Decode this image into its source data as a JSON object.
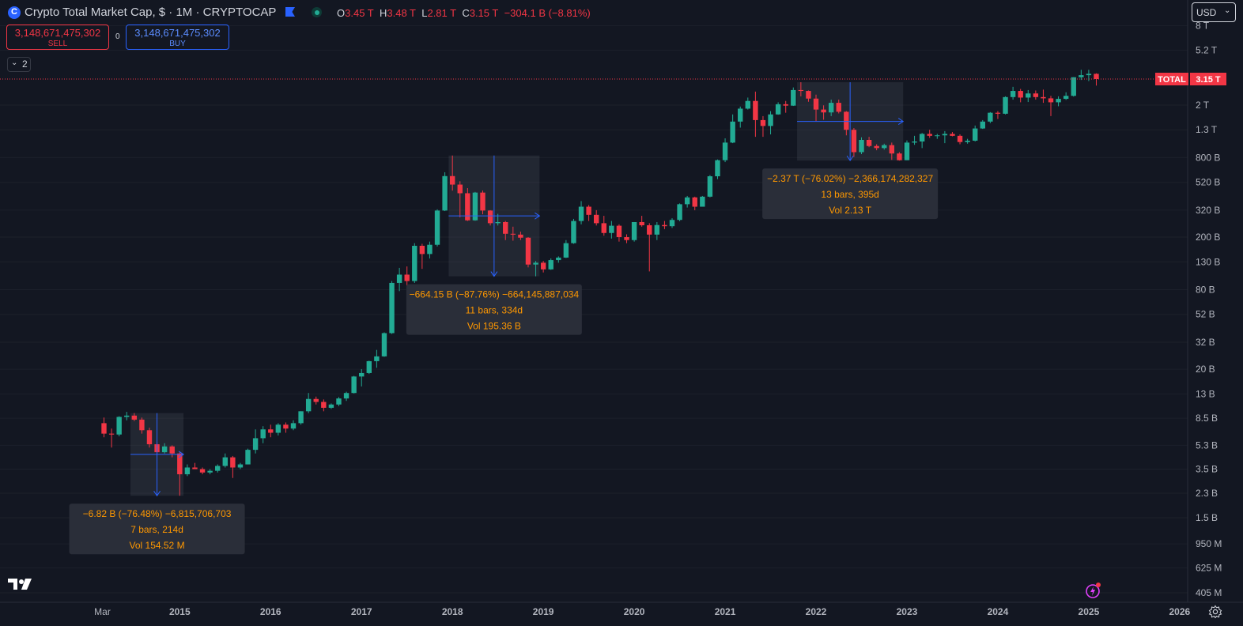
{
  "header": {
    "title": "Crypto Total Market Cap, $ · 1M · CRYPTOCAP",
    "ohlc": [
      {
        "k": "O",
        "v": "3.45 T"
      },
      {
        "k": "H",
        "v": "3.48 T"
      },
      {
        "k": "L",
        "v": "2.81 T"
      },
      {
        "k": "C",
        "v": "3.15 T"
      }
    ],
    "change": "−304.1 B (−8.81%)"
  },
  "trade": {
    "sell_value": "3,148,671,475,302",
    "sell_label": "SELL",
    "spread": "0",
    "buy_value": "3,148,671,475,302",
    "buy_label": "BUY"
  },
  "indicators_count": "2",
  "currency": "USD",
  "price_tag": {
    "label": "TOTAL",
    "value": "3.15 T"
  },
  "colors": {
    "up": "#22ab94",
    "down": "#f23645",
    "accent": "#2962ff",
    "background": "#131722",
    "measure_text": "#ff9800"
  },
  "chart_data": {
    "type": "candlestick",
    "title": "Crypto Total Market Cap",
    "interval": "1M",
    "scale": "log",
    "y_ticks": [
      "8 T",
      "5.2 T",
      "2 T",
      "1.3 T",
      "800 B",
      "520 B",
      "320 B",
      "200 B",
      "130 B",
      "80 B",
      "52 B",
      "32 B",
      "20 B",
      "13 B",
      "8.5 B",
      "5.3 B",
      "3.5 B",
      "2.3 B",
      "1.5 B",
      "950 M",
      "625 M",
      "405 M"
    ],
    "x_ticks": [
      "Mar",
      "2015",
      "2016",
      "2017",
      "2018",
      "2019",
      "2020",
      "2021",
      "2022",
      "2023",
      "2024",
      "2025",
      "2026"
    ],
    "candles": [
      [
        "2014-03",
        7.8,
        8.6,
        6.1,
        6.5
      ],
      [
        "2014-04",
        6.5,
        7.1,
        5.1,
        6.4
      ],
      [
        "2014-05",
        6.4,
        8.8,
        6.2,
        8.7
      ],
      [
        "2014-06",
        8.7,
        9.5,
        8.2,
        8.9
      ],
      [
        "2014-07",
        8.9,
        9.3,
        8.1,
        8.3
      ],
      [
        "2014-08",
        8.3,
        8.6,
        6.5,
        6.9
      ],
      [
        "2014-09",
        6.9,
        7.2,
        5.1,
        5.4
      ],
      [
        "2014-10",
        5.4,
        5.6,
        4.5,
        4.7
      ],
      [
        "2014-11",
        4.7,
        5.5,
        4.6,
        5.2
      ],
      [
        "2014-12",
        5.2,
        5.3,
        4.3,
        4.6
      ],
      [
        "2015-01",
        4.6,
        4.7,
        2.2,
        3.2
      ],
      [
        "2015-02",
        3.2,
        3.8,
        3.1,
        3.6
      ],
      [
        "2015-03",
        3.6,
        3.9,
        3.5,
        3.5
      ],
      [
        "2015-04",
        3.5,
        3.6,
        3.2,
        3.3
      ],
      [
        "2015-05",
        3.3,
        3.5,
        3.2,
        3.4
      ],
      [
        "2015-06",
        3.4,
        3.8,
        3.3,
        3.7
      ],
      [
        "2015-07",
        3.7,
        4.6,
        3.6,
        4.3
      ],
      [
        "2015-08",
        4.3,
        4.4,
        3.0,
        3.6
      ],
      [
        "2015-09",
        3.6,
        3.9,
        3.5,
        3.8
      ],
      [
        "2015-10",
        3.8,
        5.0,
        3.8,
        4.9
      ],
      [
        "2015-11",
        4.9,
        7.0,
        4.6,
        6.0
      ],
      [
        "2015-12",
        6.0,
        7.4,
        5.5,
        7.0
      ],
      [
        "2016-01",
        7.0,
        7.6,
        6.1,
        6.6
      ],
      [
        "2016-02",
        6.6,
        7.8,
        6.3,
        7.6
      ],
      [
        "2016-03",
        7.6,
        7.9,
        6.6,
        7.1
      ],
      [
        "2016-04",
        7.1,
        8.2,
        6.9,
        7.8
      ],
      [
        "2016-05",
        7.8,
        9.6,
        7.6,
        9.6
      ],
      [
        "2016-06",
        9.6,
        13.2,
        9.3,
        11.9
      ],
      [
        "2016-07",
        11.9,
        12.4,
        10.8,
        11.3
      ],
      [
        "2016-08",
        11.3,
        11.8,
        9.6,
        10.2
      ],
      [
        "2016-09",
        10.2,
        11.0,
        10.0,
        10.8
      ],
      [
        "2016-10",
        10.8,
        12.3,
        10.5,
        12.0
      ],
      [
        "2016-11",
        12.0,
        13.5,
        11.5,
        13.2
      ],
      [
        "2016-12",
        13.2,
        17.8,
        13.1,
        17.6
      ],
      [
        "2017-01",
        17.6,
        20.0,
        14.8,
        18.7
      ],
      [
        "2017-02",
        18.7,
        23.2,
        18.4,
        23.0
      ],
      [
        "2017-03",
        23.0,
        28.0,
        20.5,
        25.0
      ],
      [
        "2017-04",
        25.0,
        38.0,
        24.8,
        37.5
      ],
      [
        "2017-05",
        37.5,
        93,
        37.0,
        90
      ],
      [
        "2017-06",
        90,
        117,
        78,
        104
      ],
      [
        "2017-07",
        104,
        120,
        65,
        93
      ],
      [
        "2017-08",
        93,
        180,
        90,
        172
      ],
      [
        "2017-09",
        172,
        178,
        115,
        149
      ],
      [
        "2017-10",
        149,
        185,
        138,
        175
      ],
      [
        "2017-11",
        175,
        325,
        170,
        318
      ],
      [
        "2017-12",
        318,
        620,
        315,
        580
      ],
      [
        "2018-01",
        580,
        830,
        450,
        500
      ],
      [
        "2018-02",
        500,
        530,
        282,
        430
      ],
      [
        "2018-03",
        430,
        470,
        265,
        268
      ],
      [
        "2018-04",
        268,
        440,
        266,
        435
      ],
      [
        "2018-05",
        435,
        450,
        298,
        318
      ],
      [
        "2018-06",
        318,
        320,
        245,
        255
      ],
      [
        "2018-07",
        255,
        300,
        245,
        260
      ],
      [
        "2018-08",
        260,
        265,
        190,
        212
      ],
      [
        "2018-09",
        212,
        240,
        188,
        209
      ],
      [
        "2018-10",
        209,
        220,
        190,
        198
      ],
      [
        "2018-11",
        198,
        200,
        118,
        124
      ],
      [
        "2018-12",
        124,
        132,
        101,
        128
      ],
      [
        "2019-01",
        128,
        132,
        108,
        114
      ],
      [
        "2019-02",
        114,
        138,
        113,
        134
      ],
      [
        "2019-03",
        134,
        143,
        128,
        140
      ],
      [
        "2019-04",
        140,
        190,
        139,
        180
      ],
      [
        "2019-05",
        180,
        275,
        178,
        265
      ],
      [
        "2019-06",
        265,
        375,
        250,
        340
      ],
      [
        "2019-07",
        340,
        350,
        265,
        295
      ],
      [
        "2019-08",
        295,
        320,
        245,
        255
      ],
      [
        "2019-09",
        255,
        290,
        205,
        215
      ],
      [
        "2019-10",
        215,
        265,
        195,
        244
      ],
      [
        "2019-11",
        244,
        250,
        185,
        200
      ],
      [
        "2019-12",
        200,
        210,
        180,
        190
      ],
      [
        "2020-01",
        190,
        260,
        185,
        260
      ],
      [
        "2020-02",
        260,
        290,
        240,
        246
      ],
      [
        "2020-03",
        246,
        255,
        110,
        209
      ],
      [
        "2020-04",
        209,
        260,
        190,
        247
      ],
      [
        "2020-05",
        247,
        265,
        230,
        242
      ],
      [
        "2020-06",
        242,
        278,
        235,
        270
      ],
      [
        "2020-07",
        270,
        360,
        264,
        355
      ],
      [
        "2020-08",
        355,
        410,
        335,
        400
      ],
      [
        "2020-09",
        400,
        405,
        320,
        340
      ],
      [
        "2020-10",
        340,
        410,
        340,
        405
      ],
      [
        "2020-11",
        405,
        590,
        400,
        578
      ],
      [
        "2020-12",
        578,
        775,
        550,
        765
      ],
      [
        "2021-01",
        765,
        1120,
        740,
        1040
      ],
      [
        "2021-02",
        1040,
        1700,
        1030,
        1500
      ],
      [
        "2021-03",
        1500,
        1950,
        1350,
        1880
      ],
      [
        "2021-04",
        1880,
        2280,
        1850,
        2150
      ],
      [
        "2021-05",
        2150,
        2530,
        1150,
        1540
      ],
      [
        "2021-06",
        1540,
        1650,
        1150,
        1390
      ],
      [
        "2021-07",
        1390,
        1800,
        1200,
        1700
      ],
      [
        "2021-08",
        1700,
        2100,
        1690,
        2030
      ],
      [
        "2021-09",
        2030,
        2150,
        1750,
        1980
      ],
      [
        "2021-10",
        1980,
        2720,
        1970,
        2600
      ],
      [
        "2021-11",
        2600,
        2980,
        2330,
        2560
      ],
      [
        "2021-12",
        2560,
        2580,
        2120,
        2240
      ],
      [
        "2022-01",
        2240,
        2400,
        1510,
        1850
      ],
      [
        "2022-02",
        1850,
        1990,
        1550,
        1760
      ],
      [
        "2022-03",
        1760,
        2200,
        1650,
        2080
      ],
      [
        "2022-04",
        2080,
        2200,
        1730,
        1780
      ],
      [
        "2022-05",
        1780,
        1800,
        1180,
        1300
      ],
      [
        "2022-06",
        1300,
        1340,
        810,
        880
      ],
      [
        "2022-07",
        880,
        1140,
        850,
        1090
      ],
      [
        "2022-08",
        1090,
        1150,
        960,
        980
      ],
      [
        "2022-09",
        980,
        1010,
        910,
        945
      ],
      [
        "2022-10",
        945,
        1020,
        920,
        995
      ],
      [
        "2022-11",
        995,
        1040,
        770,
        860
      ],
      [
        "2022-12",
        860,
        880,
        760,
        765
      ],
      [
        "2023-01",
        765,
        1080,
        765,
        1040
      ],
      [
        "2023-02",
        1040,
        1170,
        1000,
        1060
      ],
      [
        "2023-03",
        1060,
        1230,
        945,
        1210
      ],
      [
        "2023-04",
        1210,
        1300,
        1130,
        1170
      ],
      [
        "2023-05",
        1170,
        1210,
        1110,
        1180
      ],
      [
        "2023-06",
        1180,
        1270,
        1030,
        1210
      ],
      [
        "2023-07",
        1210,
        1250,
        1160,
        1170
      ],
      [
        "2023-08",
        1170,
        1200,
        1010,
        1050
      ],
      [
        "2023-09",
        1050,
        1110,
        1020,
        1075
      ],
      [
        "2023-10",
        1075,
        1400,
        1060,
        1330
      ],
      [
        "2023-11",
        1330,
        1540,
        1320,
        1500
      ],
      [
        "2023-12",
        1500,
        1770,
        1460,
        1750
      ],
      [
        "2024-01",
        1750,
        1800,
        1570,
        1720
      ],
      [
        "2024-02",
        1720,
        2330,
        1700,
        2300
      ],
      [
        "2024-03",
        2300,
        2750,
        2200,
        2560
      ],
      [
        "2024-04",
        2560,
        2650,
        2100,
        2280
      ],
      [
        "2024-05",
        2280,
        2600,
        2110,
        2450
      ],
      [
        "2024-06",
        2450,
        2580,
        2200,
        2300
      ],
      [
        "2024-07",
        2300,
        2620,
        2080,
        2250
      ],
      [
        "2024-08",
        2250,
        2350,
        1650,
        2100
      ],
      [
        "2024-09",
        2100,
        2330,
        1960,
        2230
      ],
      [
        "2024-10",
        2230,
        2500,
        2190,
        2350
      ],
      [
        "2024-11",
        2350,
        3250,
        2320,
        3250
      ],
      [
        "2024-12",
        3250,
        3700,
        3100,
        3370
      ],
      [
        "2025-01",
        3370,
        3700,
        3040,
        3450
      ],
      [
        "2025-02",
        3450,
        3480,
        2810,
        3150
      ]
    ],
    "measurements": [
      {
        "line1": "−6.82 B (−76.48%) −6,815,706,703",
        "line2": "7 bars, 214d",
        "line3": "Vol 154.52 M",
        "from": "2014-07",
        "to": "2015-01"
      },
      {
        "line1": "−664.15 B (−87.76%) −664,145,887,034",
        "line2": "11 bars, 334d",
        "line3": "Vol 195.36 B",
        "from": "2018-01",
        "to": "2018-12"
      },
      {
        "line1": "−2.37 T (−76.02%) −2,366,174,282,327",
        "line2": "13 bars, 395d",
        "line3": "Vol 2.13 T",
        "from": "2021-11",
        "to": "2022-12"
      }
    ],
    "last_price": 3150
  }
}
